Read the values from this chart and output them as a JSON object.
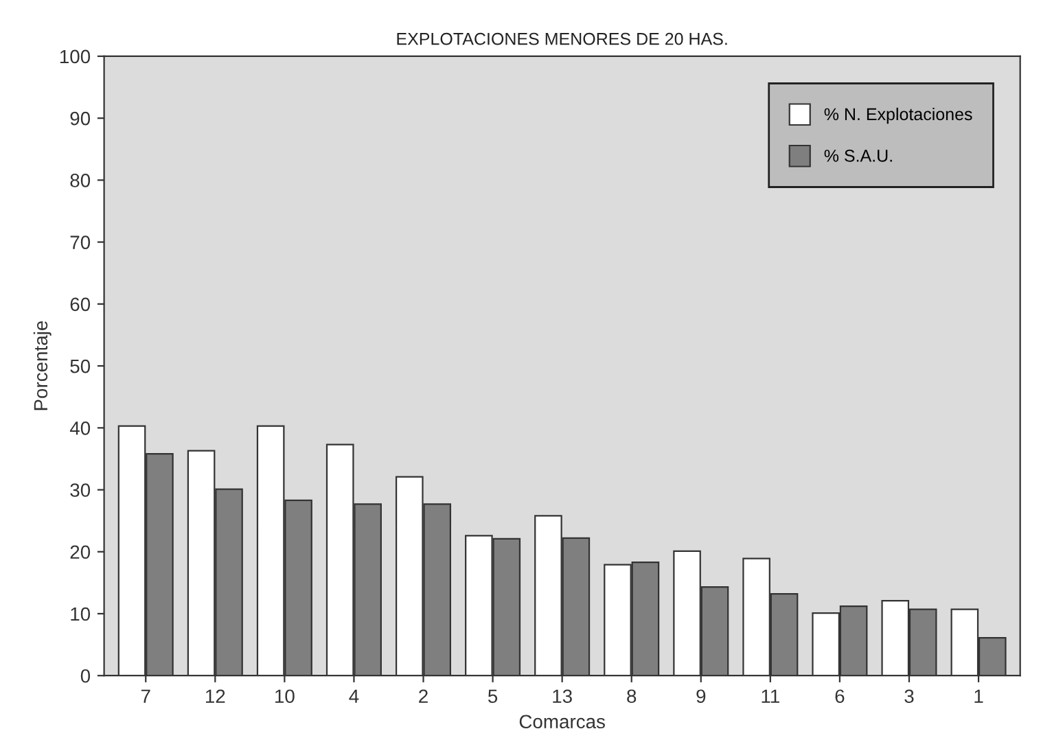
{
  "chart_data": {
    "type": "bar",
    "title": "EXPLOTACIONES MENORES DE 20 HAS.",
    "xlabel": "Comarcas",
    "ylabel": "Porcentaje",
    "categories": [
      "7",
      "12",
      "10",
      "4",
      "2",
      "5",
      "13",
      "8",
      "9",
      "11",
      "6",
      "3",
      "1"
    ],
    "series": [
      {
        "name": "% N. Explotaciones",
        "color": "#ffffff",
        "values": [
          40.3,
          36.3,
          40.3,
          37.3,
          32.1,
          22.6,
          25.8,
          17.9,
          20.1,
          18.9,
          10.1,
          12.1,
          10.7
        ]
      },
      {
        "name": "% S.A.U.",
        "color": "#7f7f7f",
        "values": [
          35.8,
          30.1,
          28.3,
          27.7,
          27.7,
          22.1,
          22.2,
          18.3,
          14.3,
          13.2,
          11.2,
          10.7,
          6.1
        ]
      }
    ],
    "ylim": [
      0,
      100
    ],
    "yticks": [
      0,
      10,
      20,
      30,
      40,
      50,
      60,
      70,
      80,
      90,
      100
    ],
    "grid": false,
    "legend": "top right"
  }
}
